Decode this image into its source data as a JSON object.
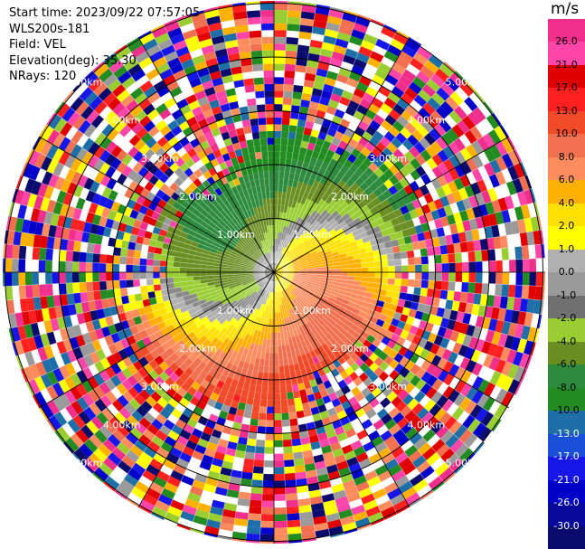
{
  "header": {
    "start_time": "Start time: 2023/09/22 07:57:05",
    "instrument": "WLS200s-181",
    "field": "Field: VEL",
    "elevation": "Elevation(deg): 35.30",
    "nrays": "NRays: 120"
  },
  "colorbar": {
    "unit": "m/s",
    "segments": [
      {
        "color": "#f02f8c"
      },
      {
        "color": "#ff45a8"
      },
      {
        "color": "#e00000"
      },
      {
        "color": "#ff2020"
      },
      {
        "color": "#f04a28"
      },
      {
        "color": "#f07050"
      },
      {
        "color": "#fc8c5e"
      },
      {
        "color": "#ffb000"
      },
      {
        "color": "#ffe000"
      },
      {
        "color": "#ffff00"
      },
      {
        "color": "#b0b0b0"
      },
      {
        "color": "#9a9a9a"
      },
      {
        "color": "#707070"
      },
      {
        "color": "#9acd32"
      },
      {
        "color": "#6b8e23"
      },
      {
        "color": "#2e8b3e"
      },
      {
        "color": "#228b22"
      },
      {
        "color": "#1e6fa8"
      },
      {
        "color": "#1a4fd8"
      },
      {
        "color": "#1616e8"
      },
      {
        "color": "#0000c8"
      },
      {
        "color": "#0a0a9a"
      },
      {
        "color": "#0b0b6e"
      }
    ],
    "ticks": [
      "26.0",
      "21.0",
      "17.0",
      "13.0",
      "10.0",
      "8.0",
      "6.0",
      "4.0",
      "2.0",
      "1.0",
      "0.0",
      "-1.0",
      "-2.0",
      "-4.0",
      "-6.0",
      "-8.0",
      "-10.0",
      "-13.0",
      "-17.0",
      "-21.0",
      "-26.0",
      "-30.0"
    ]
  },
  "range_labels": [
    "1.00km",
    "2.00km",
    "3.00km",
    "4.00km",
    "5.00km"
  ],
  "noise_palette": [
    "#f02f8c",
    "#e00000",
    "#ff2020",
    "#f07050",
    "#ffb000",
    "#ffff00",
    "#9a9a9a",
    "#9acd32",
    "#228b22",
    "#1e6fa8",
    "#1616e8",
    "#0000c8",
    "#0b0b6e",
    "#ff45a8",
    "#fc8c5e"
  ]
}
